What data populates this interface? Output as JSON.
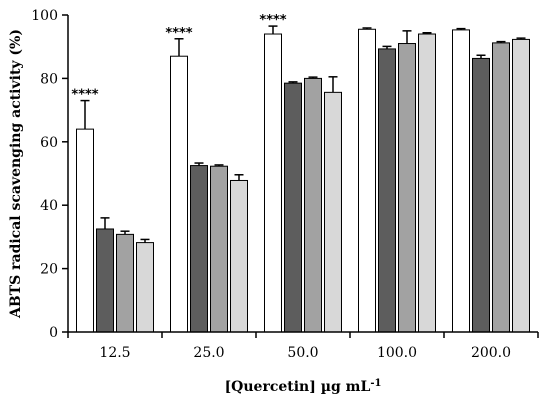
{
  "chart_data": {
    "type": "bar",
    "xlabel": "[Quercetin] µg mL",
    "xlabel_superscript": "-1",
    "ylabel": "ABTS radical scavenging activity (%)",
    "ylim": [
      0,
      100
    ],
    "yticks": [
      0,
      20,
      40,
      60,
      80,
      100
    ],
    "grid": false,
    "legend": "none",
    "categories": [
      "12.5",
      "25.0",
      "50.0",
      "100.0",
      "200.0"
    ],
    "series": [
      {
        "fill": "#ffffff",
        "values": [
          64,
          87,
          94,
          95.5,
          95.3
        ],
        "errors": [
          9,
          5.5,
          2.5,
          0.4,
          0.4
        ]
      },
      {
        "fill": "#5d5d5d",
        "values": [
          32.5,
          52.5,
          78.5,
          89.3,
          86.3
        ],
        "errors": [
          3.5,
          0.8,
          0.4,
          0.8,
          1.0
        ]
      },
      {
        "fill": "#a2a2a2",
        "values": [
          30.8,
          52.3,
          80.0,
          91.0,
          91.2
        ],
        "errors": [
          1.0,
          0.4,
          0.4,
          4.0,
          0.4
        ]
      },
      {
        "fill": "#d8d8d8",
        "values": [
          28.2,
          47.8,
          75.6,
          94.0,
          92.3
        ],
        "errors": [
          1.0,
          1.8,
          4.9,
          0.4,
          0.4
        ]
      }
    ],
    "annotations": [
      {
        "category": "12.5",
        "series": 0,
        "text": "****"
      },
      {
        "category": "25.0",
        "series": 0,
        "text": "****"
      },
      {
        "category": "50.0",
        "series": 0,
        "text": "****"
      }
    ]
  }
}
